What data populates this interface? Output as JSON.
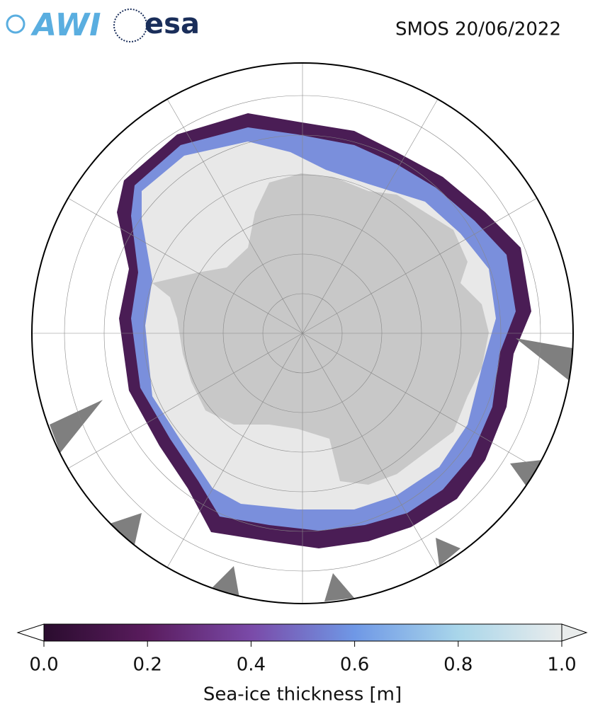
{
  "header": {
    "logos": [
      "AWI",
      "esa"
    ],
    "title": "SMOS 20/06/2022"
  },
  "colorbar": {
    "label": "Sea-ice thickness [m]",
    "lim": [
      0,
      1
    ],
    "ticks": [
      {
        "value": 0,
        "label": "0.0"
      },
      {
        "value": 0.2,
        "label": "0.2"
      },
      {
        "value": 0.4,
        "label": "0.4"
      },
      {
        "value": 0.6,
        "label": "0.6"
      },
      {
        "value": 0.8,
        "label": "0.8"
      },
      {
        "value": 1,
        "label": "1.0"
      }
    ],
    "colors": [
      "#2a0c2e",
      "#5a1c5e",
      "#7a4aa8",
      "#6f98e6",
      "#a9d6ea",
      "#e9ecec"
    ]
  }
}
